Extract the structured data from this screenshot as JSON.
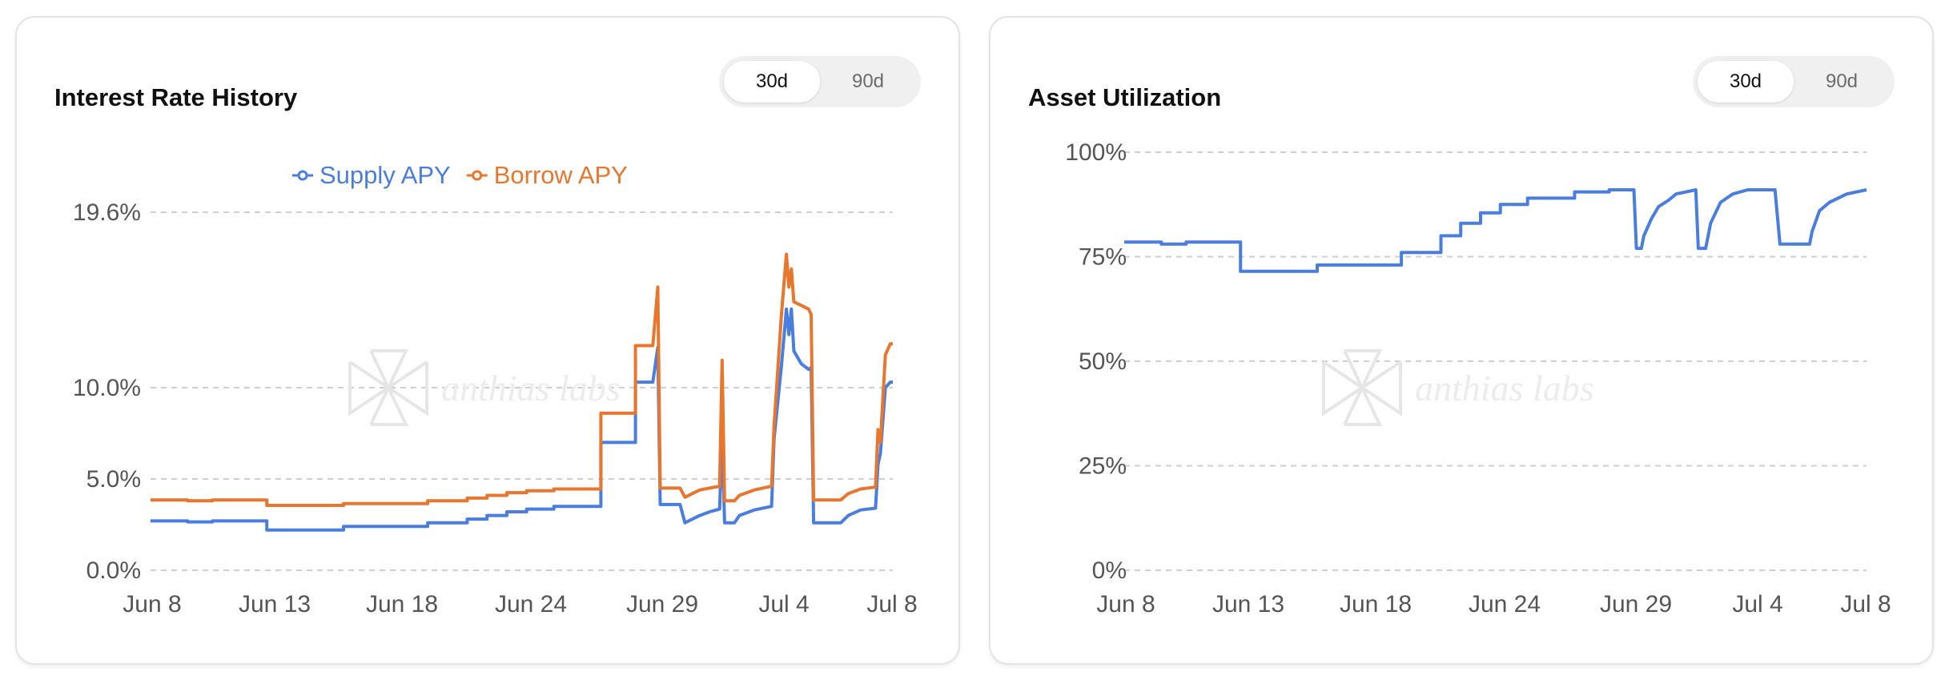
{
  "charts": [
    {
      "title": "Interest Rate History",
      "toggle": {
        "options": [
          "30d",
          "90d"
        ],
        "selected": "30d"
      },
      "watermark": "anthias labs"
    },
    {
      "title": "Asset Utilization",
      "toggle": {
        "options": [
          "30d",
          "90d"
        ],
        "selected": "30d"
      },
      "watermark": "anthias labs"
    }
  ],
  "colors": {
    "supply": "#4a7de0",
    "borrow": "#e8762d",
    "grid": "#cfcfcf"
  },
  "chart_data": [
    {
      "type": "line",
      "title": "Interest Rate History",
      "x_ticks": [
        "Jun 8",
        "Jun 13",
        "Jun 18",
        "Jun 24",
        "Jun 29",
        "Jul 4",
        "Jul 8"
      ],
      "y_ticks": [
        "0.0%",
        "5.0%",
        "10.0%",
        "19.6%"
      ],
      "y_tick_values": [
        0,
        5,
        10,
        19.6
      ],
      "ylim": [
        0,
        19.6
      ],
      "xlim": [
        0,
        30
      ],
      "grid": true,
      "legend_position": "top-center",
      "series": [
        {
          "name": "Supply APY",
          "color": "#4a7de0",
          "points": [
            [
              0,
              2.7
            ],
            [
              1.5,
              2.7
            ],
            [
              1.5,
              2.65
            ],
            [
              2.5,
              2.65
            ],
            [
              2.5,
              2.7
            ],
            [
              4.7,
              2.7
            ],
            [
              4.7,
              2.2
            ],
            [
              7.8,
              2.2
            ],
            [
              7.8,
              2.4
            ],
            [
              11.2,
              2.4
            ],
            [
              11.2,
              2.6
            ],
            [
              12.8,
              2.6
            ],
            [
              12.8,
              2.8
            ],
            [
              13.6,
              2.8
            ],
            [
              13.6,
              3.0
            ],
            [
              14.4,
              3.0
            ],
            [
              14.4,
              3.2
            ],
            [
              15.2,
              3.2
            ],
            [
              15.2,
              3.35
            ],
            [
              16.3,
              3.35
            ],
            [
              16.3,
              3.5
            ],
            [
              18.2,
              3.5
            ],
            [
              18.2,
              7.0
            ],
            [
              19.6,
              7.0
            ],
            [
              19.6,
              10.3
            ],
            [
              20.3,
              10.3
            ],
            [
              20.5,
              12.2
            ],
            [
              20.6,
              3.6
            ],
            [
              21.4,
              3.6
            ],
            [
              21.6,
              2.6
            ],
            [
              21.9,
              2.8
            ],
            [
              22.2,
              3.0
            ],
            [
              22.6,
              3.2
            ],
            [
              23.0,
              3.35
            ],
            [
              23.1,
              7.5
            ],
            [
              23.2,
              2.6
            ],
            [
              23.6,
              2.6
            ],
            [
              23.8,
              3.0
            ],
            [
              24.4,
              3.3
            ],
            [
              25.1,
              3.5
            ],
            [
              25.2,
              7.2
            ],
            [
              25.5,
              11.2
            ],
            [
              25.7,
              14.3
            ],
            [
              25.8,
              12.9
            ],
            [
              25.9,
              14.3
            ],
            [
              26.0,
              12.0
            ],
            [
              26.3,
              11.3
            ],
            [
              26.6,
              11.0
            ],
            [
              26.7,
              11.1
            ],
            [
              26.8,
              2.6
            ],
            [
              27.9,
              2.6
            ],
            [
              28.2,
              3.0
            ],
            [
              28.7,
              3.3
            ],
            [
              29.3,
              3.4
            ],
            [
              29.4,
              5.8
            ],
            [
              29.5,
              6.4
            ],
            [
              29.7,
              10.0
            ],
            [
              29.9,
              10.3
            ],
            [
              30,
              10.3
            ]
          ]
        },
        {
          "name": "Borrow APY",
          "color": "#e8762d",
          "points": [
            [
              0,
              3.85
            ],
            [
              1.5,
              3.85
            ],
            [
              1.5,
              3.8
            ],
            [
              2.5,
              3.8
            ],
            [
              2.5,
              3.85
            ],
            [
              4.7,
              3.85
            ],
            [
              4.7,
              3.55
            ],
            [
              7.8,
              3.55
            ],
            [
              7.8,
              3.65
            ],
            [
              11.2,
              3.65
            ],
            [
              11.2,
              3.8
            ],
            [
              12.8,
              3.8
            ],
            [
              12.8,
              3.95
            ],
            [
              13.6,
              3.95
            ],
            [
              13.6,
              4.1
            ],
            [
              14.4,
              4.1
            ],
            [
              14.4,
              4.25
            ],
            [
              15.2,
              4.25
            ],
            [
              15.2,
              4.35
            ],
            [
              16.3,
              4.35
            ],
            [
              16.3,
              4.45
            ],
            [
              18.2,
              4.45
            ],
            [
              18.2,
              8.6
            ],
            [
              19.6,
              8.6
            ],
            [
              19.6,
              12.3
            ],
            [
              20.3,
              12.3
            ],
            [
              20.5,
              15.5
            ],
            [
              20.6,
              4.5
            ],
            [
              21.4,
              4.5
            ],
            [
              21.6,
              4.0
            ],
            [
              21.9,
              4.2
            ],
            [
              22.2,
              4.4
            ],
            [
              22.6,
              4.5
            ],
            [
              23.0,
              4.6
            ],
            [
              23.1,
              11.5
            ],
            [
              23.2,
              3.8
            ],
            [
              23.6,
              3.8
            ],
            [
              23.8,
              4.1
            ],
            [
              24.4,
              4.4
            ],
            [
              25.1,
              4.6
            ],
            [
              25.2,
              7.9
            ],
            [
              25.5,
              14.0
            ],
            [
              25.7,
              17.3
            ],
            [
              25.8,
              15.5
            ],
            [
              25.9,
              16.5
            ],
            [
              26.0,
              14.7
            ],
            [
              26.3,
              14.5
            ],
            [
              26.6,
              14.3
            ],
            [
              26.7,
              14.0
            ],
            [
              26.8,
              3.85
            ],
            [
              27.9,
              3.85
            ],
            [
              28.2,
              4.2
            ],
            [
              28.7,
              4.45
            ],
            [
              29.3,
              4.55
            ],
            [
              29.4,
              7.7
            ],
            [
              29.5,
              7.0
            ],
            [
              29.7,
              11.8
            ],
            [
              29.9,
              12.4
            ],
            [
              30,
              12.4
            ]
          ]
        }
      ]
    },
    {
      "type": "line",
      "title": "Asset Utilization",
      "x_ticks": [
        "Jun 8",
        "Jun 13",
        "Jun 18",
        "Jun 24",
        "Jun 29",
        "Jul 4",
        "Jul 8"
      ],
      "y_ticks": [
        "0%",
        "25%",
        "50%",
        "75%",
        "100%"
      ],
      "y_tick_values": [
        0,
        25,
        50,
        75,
        100
      ],
      "ylim": [
        0,
        100
      ],
      "xlim": [
        0,
        30
      ],
      "grid": true,
      "series": [
        {
          "name": "",
          "color": "#4a7de0",
          "points": [
            [
              0,
              78.5
            ],
            [
              1.5,
              78.5
            ],
            [
              1.5,
              78
            ],
            [
              2.5,
              78
            ],
            [
              2.5,
              78.5
            ],
            [
              4.7,
              78.5
            ],
            [
              4.7,
              71.5
            ],
            [
              7.8,
              71.5
            ],
            [
              7.8,
              73
            ],
            [
              11.2,
              73
            ],
            [
              11.2,
              76
            ],
            [
              12.8,
              76
            ],
            [
              12.8,
              80
            ],
            [
              13.6,
              80
            ],
            [
              13.6,
              83
            ],
            [
              14.4,
              83
            ],
            [
              14.4,
              85.5
            ],
            [
              15.2,
              85.5
            ],
            [
              15.2,
              87.5
            ],
            [
              16.3,
              87.5
            ],
            [
              16.3,
              89
            ],
            [
              18.2,
              89
            ],
            [
              18.2,
              90.5
            ],
            [
              19.6,
              90.5
            ],
            [
              19.6,
              91
            ],
            [
              20.6,
              91
            ],
            [
              20.7,
              77
            ],
            [
              20.9,
              77
            ],
            [
              21.0,
              80
            ],
            [
              21.3,
              84
            ],
            [
              21.6,
              87
            ],
            [
              22.0,
              88.5
            ],
            [
              22.3,
              90
            ],
            [
              23.1,
              91
            ],
            [
              23.2,
              77
            ],
            [
              23.5,
              77
            ],
            [
              23.7,
              83
            ],
            [
              24.1,
              88
            ],
            [
              24.6,
              90
            ],
            [
              25.2,
              91
            ],
            [
              26.3,
              91
            ],
            [
              26.5,
              78
            ],
            [
              27.7,
              78
            ],
            [
              27.8,
              81
            ],
            [
              28.1,
              86
            ],
            [
              28.5,
              88
            ],
            [
              29.2,
              90
            ],
            [
              30,
              91
            ]
          ]
        }
      ]
    }
  ]
}
